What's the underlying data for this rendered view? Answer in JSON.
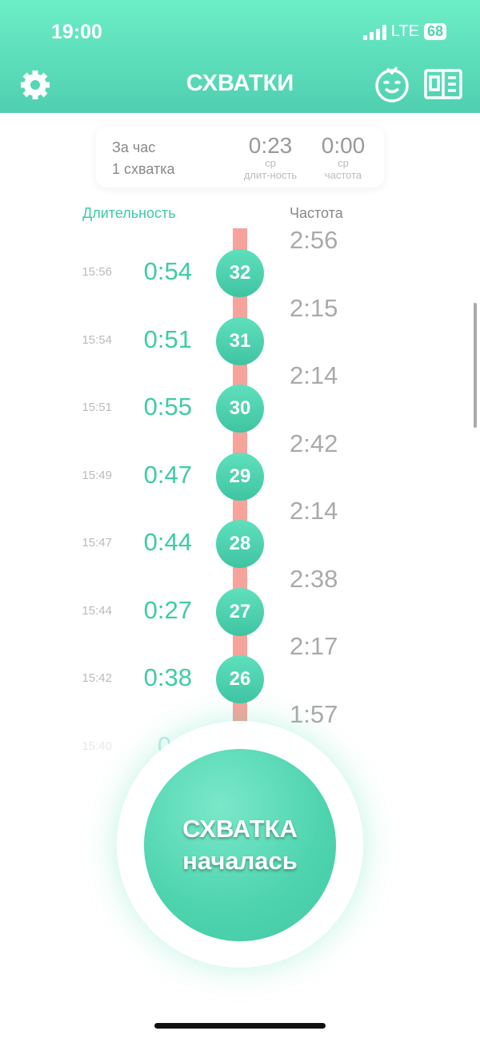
{
  "status_bar": {
    "time": "19:00",
    "network": "LTE",
    "battery": "68"
  },
  "header": {
    "title": "СХВАТКИ",
    "left_icon": "gear-icon",
    "right_icons": [
      "baby-face-icon",
      "book-icon"
    ]
  },
  "summary": {
    "period": "За час",
    "count": "1 схватка",
    "avg_duration": "0:23",
    "avg_duration_caption1": "ср",
    "avg_duration_caption2": "длит-ность",
    "avg_frequency": "0:00",
    "avg_frequency_caption1": "ср",
    "avg_frequency_caption2": "частота"
  },
  "columns": {
    "duration": "Длительность",
    "frequency": "Частота"
  },
  "colors": {
    "accent": "#3fcba6",
    "connector": "#f6a39b"
  },
  "rows": [
    {
      "time": "15:56",
      "duration": "0:54",
      "number": "32"
    },
    {
      "time": "15:54",
      "duration": "0:51",
      "number": "31"
    },
    {
      "time": "15:51",
      "duration": "0:55",
      "number": "30"
    },
    {
      "time": "15:49",
      "duration": "0:47",
      "number": "29"
    },
    {
      "time": "15:47",
      "duration": "0:44",
      "number": "28"
    },
    {
      "time": "15:44",
      "duration": "0:27",
      "number": "27"
    },
    {
      "time": "15:42",
      "duration": "0:38",
      "number": "26"
    },
    {
      "time": "15:40",
      "duration": "0:2",
      "number": ""
    }
  ],
  "frequencies": [
    "2:56",
    "2:15",
    "2:14",
    "2:42",
    "2:14",
    "2:38",
    "2:17",
    "1:57"
  ],
  "main_button": {
    "line1": "СХВАТКА",
    "line2": "началась"
  }
}
